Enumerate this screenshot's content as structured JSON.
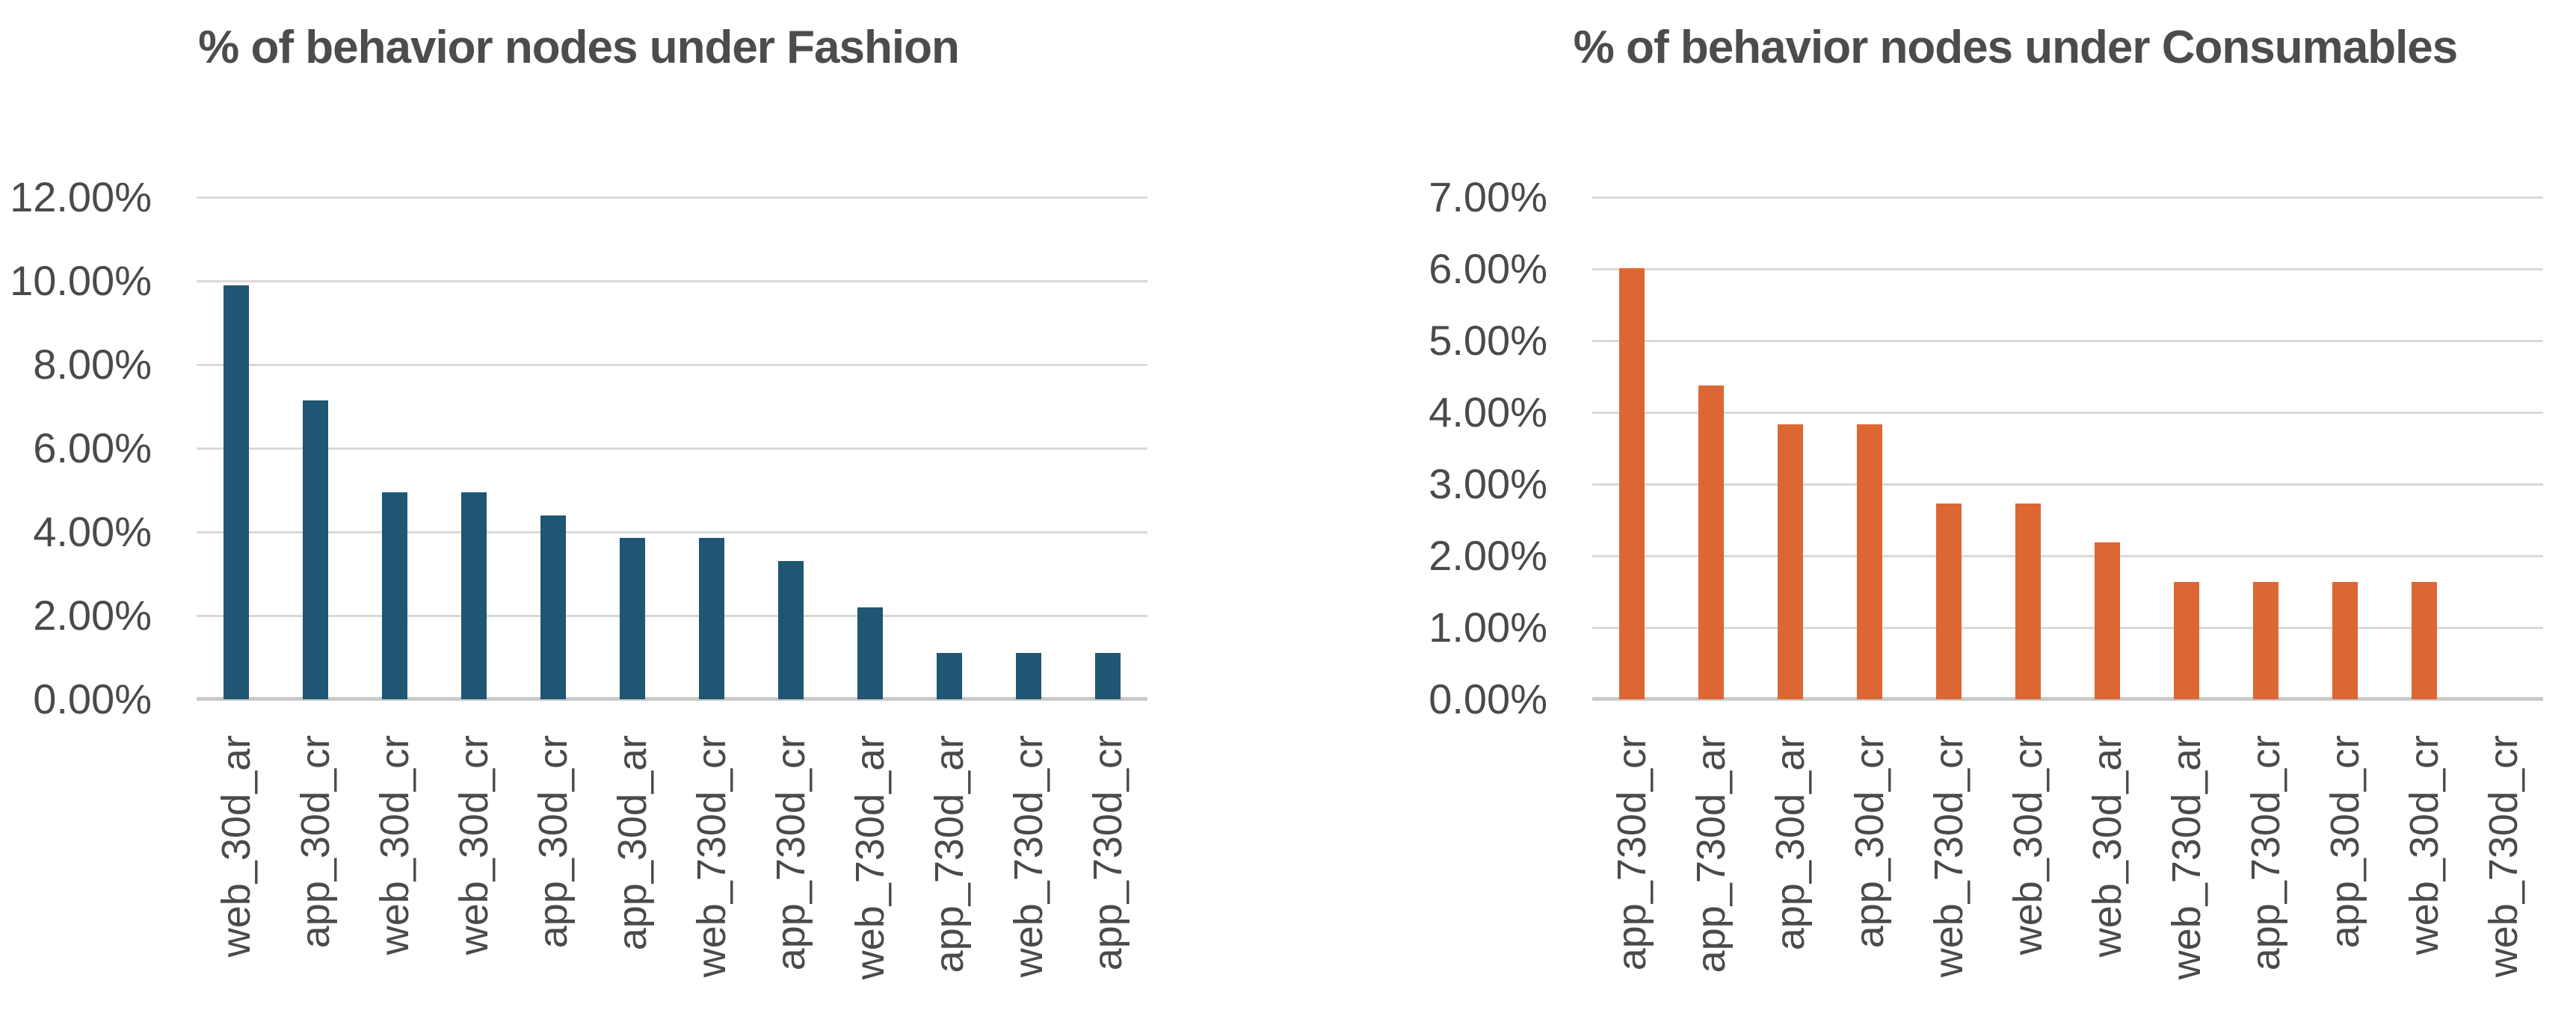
{
  "page": {
    "background": "#ffffff",
    "text_color": "#4A4A4A",
    "title_color": "#4C4C4C",
    "grid_color": "#D9D9D9",
    "axis_line_color": "#C9C9C9"
  },
  "chart_data": [
    {
      "type": "bar",
      "title": "% of behavior nodes under Fashion",
      "categories": [
        "web_30d_ar",
        "app_30d_cr",
        "web_30d_cr",
        "web_30d_cr",
        "app_30d_cr",
        "app_30d_ar",
        "web_730d_cr",
        "app_730d_cr",
        "web_730d_ar",
        "app_730d_ar",
        "web_730d_cr",
        "app_730d_cr"
      ],
      "values": [
        9.89,
        7.14,
        4.95,
        4.95,
        4.4,
        3.85,
        3.85,
        3.3,
        2.2,
        1.1,
        1.1,
        1.1
      ],
      "value_unit": "percent",
      "xlabel": "",
      "ylabel": "",
      "ylim": [
        0,
        12
      ],
      "ytick_step": 2,
      "ytick_labels": [
        "12.00%",
        "10.00%",
        "8.00%",
        "6.00%",
        "4.00%",
        "2.00%",
        "0.00%"
      ],
      "bar_color": "#1F5673",
      "grid": true,
      "legend": "none"
    },
    {
      "type": "bar",
      "title": "% of behavior nodes under Consumables",
      "categories": [
        "app_730d_cr",
        "app_730d_ar",
        "app_30d_ar",
        "app_30d_cr",
        "web_730d_cr",
        "web_30d_cr",
        "web_30d_ar",
        "web_730d_ar",
        "app_730d_cr",
        "app_30d_cr",
        "web_30d_cr",
        "web_730d_cr"
      ],
      "values": [
        6.01,
        4.37,
        3.83,
        3.83,
        2.73,
        2.73,
        2.19,
        1.64,
        1.64,
        1.64,
        1.64,
        0
      ],
      "value_unit": "percent",
      "xlabel": "",
      "ylabel": "",
      "ylim": [
        0,
        7
      ],
      "ytick_step": 1,
      "ytick_labels": [
        "7.00%",
        "6.00%",
        "5.00%",
        "4.00%",
        "3.00%",
        "2.00%",
        "1.00%",
        "0.00%"
      ],
      "bar_color": "#DD6733",
      "grid": true,
      "legend": "none"
    }
  ]
}
